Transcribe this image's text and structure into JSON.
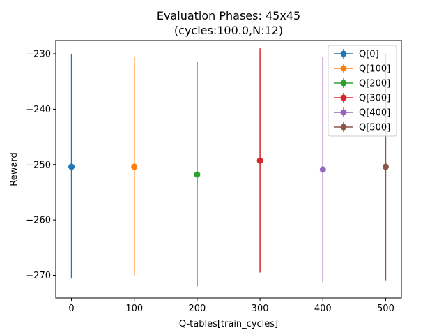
{
  "chart_data": {
    "type": "scatter",
    "title": "Evaluation Phases: 45x45",
    "subtitle": "(cycles:100.0,N:12)",
    "xlabel": "Q-tables[train_cycles]",
    "ylabel": "Reward",
    "xlim": [
      -25,
      525
    ],
    "ylim": [
      -274.1,
      -227.6
    ],
    "xticks": [
      0,
      100,
      200,
      300,
      400,
      500
    ],
    "yticks": [
      -270,
      -260,
      -250,
      -240,
      -230
    ],
    "legend_position": "top-right",
    "grid": false,
    "series": [
      {
        "name": "Q[0]",
        "x": 0,
        "y": -250.4,
        "err_low": -270.6,
        "err_high": -230.1,
        "color": "#1f77b4"
      },
      {
        "name": "Q[100]",
        "x": 100,
        "y": -250.4,
        "err_low": -270.0,
        "err_high": -230.6,
        "color": "#ff7f0e"
      },
      {
        "name": "Q[200]",
        "x": 200,
        "y": -251.8,
        "err_low": -272.0,
        "err_high": -231.5,
        "color": "#2ca02c"
      },
      {
        "name": "Q[300]",
        "x": 300,
        "y": -249.3,
        "err_low": -269.5,
        "err_high": -229.0,
        "color": "#d62728"
      },
      {
        "name": "Q[400]",
        "x": 400,
        "y": -250.9,
        "err_low": -271.2,
        "err_high": -230.5,
        "color": "#9467bd"
      },
      {
        "name": "Q[500]",
        "x": 500,
        "y": -250.4,
        "err_low": -270.9,
        "err_high": -229.9,
        "color": "#8c564b"
      }
    ]
  }
}
